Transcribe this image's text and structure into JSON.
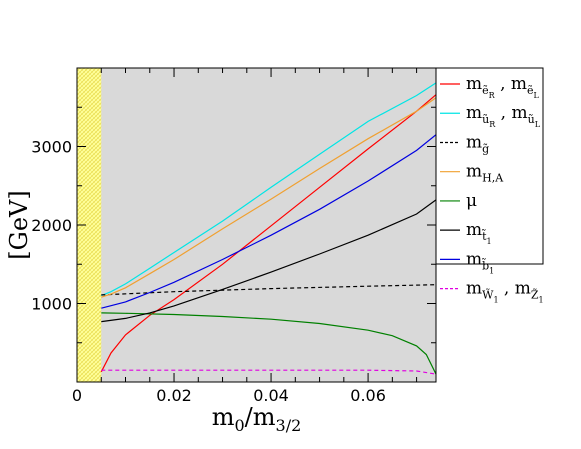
{
  "chart_data": {
    "type": "line",
    "xlabel": {
      "main": "m",
      "sub1": "0",
      "mid": "/m",
      "sub2": "3/2"
    },
    "ylabel": "[GeV]",
    "xlim": [
      0,
      0.074
    ],
    "ylim": [
      0,
      4000
    ],
    "x_ticks": [
      0,
      0.02,
      0.04,
      0.06
    ],
    "x_tick_labels": [
      "0",
      "0.02",
      "0.04",
      "0.06"
    ],
    "y_ticks": [
      1000,
      2000,
      3000
    ],
    "y_tick_labels": [
      "1000",
      "2000",
      "3000"
    ],
    "excluded_region": {
      "x_start": 0,
      "x_end": 0.005,
      "color": "#ffff88"
    },
    "plot_background": "#d9d9d9",
    "grid": false,
    "legend_position": "right",
    "series": [
      {
        "name": "m_{ẽR}, m_{ẽL}",
        "color": "#ff0000",
        "dash": "solid",
        "x": [
          0.005,
          0.007,
          0.01,
          0.015,
          0.02,
          0.03,
          0.04,
          0.05,
          0.06,
          0.07,
          0.074
        ],
        "y": [
          130,
          370,
          600,
          850,
          1050,
          1500,
          1990,
          2480,
          2970,
          3450,
          3660
        ]
      },
      {
        "name": "m_{ũR}, m_{ũL}",
        "color": "#00e5e5",
        "dash": "solid",
        "x": [
          0.005,
          0.007,
          0.01,
          0.015,
          0.02,
          0.03,
          0.04,
          0.05,
          0.06,
          0.07,
          0.074
        ],
        "y": [
          1100,
          1150,
          1250,
          1450,
          1650,
          2050,
          2480,
          2900,
          3320,
          3650,
          3810
        ]
      },
      {
        "name": "m_{g̃}",
        "color": "#000000",
        "dash": "dashed",
        "x": [
          0.005,
          0.02,
          0.04,
          0.06,
          0.074
        ],
        "y": [
          1110,
          1150,
          1190,
          1220,
          1240
        ]
      },
      {
        "name": "m_{H,A}",
        "color": "#f0a030",
        "dash": "solid",
        "x": [
          0.005,
          0.007,
          0.01,
          0.015,
          0.02,
          0.03,
          0.04,
          0.05,
          0.06,
          0.07,
          0.074
        ],
        "y": [
          1080,
          1120,
          1200,
          1380,
          1560,
          1950,
          2330,
          2720,
          3100,
          3450,
          3620
        ]
      },
      {
        "name": "μ",
        "color": "#008000",
        "dash": "solid",
        "x": [
          0.005,
          0.01,
          0.02,
          0.03,
          0.04,
          0.05,
          0.06,
          0.065,
          0.07,
          0.072,
          0.074
        ],
        "y": [
          880,
          875,
          860,
          835,
          800,
          745,
          660,
          590,
          460,
          350,
          100
        ]
      },
      {
        "name": "m_{t̃1}",
        "color": "#000000",
        "dash": "solid",
        "x": [
          0.005,
          0.01,
          0.015,
          0.02,
          0.03,
          0.04,
          0.05,
          0.06,
          0.07,
          0.074
        ],
        "y": [
          770,
          810,
          880,
          970,
          1180,
          1400,
          1630,
          1870,
          2140,
          2320
        ]
      },
      {
        "name": "m_{b̃1}",
        "color": "#0000e0",
        "dash": "solid",
        "x": [
          0.005,
          0.01,
          0.015,
          0.02,
          0.03,
          0.04,
          0.05,
          0.06,
          0.07,
          0.074
        ],
        "y": [
          940,
          1020,
          1140,
          1270,
          1560,
          1870,
          2200,
          2560,
          2950,
          3150
        ]
      },
      {
        "name": "m_{W̃1}, m_{Z̃1}",
        "color": "#e000e0",
        "dash": "dashed",
        "x": [
          0.005,
          0.02,
          0.04,
          0.06,
          0.07,
          0.074
        ],
        "y": [
          150,
          150,
          150,
          150,
          140,
          100
        ]
      }
    ],
    "legend": [
      {
        "line_color": "#ff0000",
        "dash": "solid",
        "parts": [
          [
            "m",
            ""
          ],
          [
            "ẽ",
            "sub"
          ],
          [
            "R",
            "subsub"
          ],
          [
            " , m",
            ""
          ],
          [
            "ẽ",
            "sub"
          ],
          [
            "L",
            "subsub"
          ]
        ]
      },
      {
        "line_color": "#00e5e5",
        "dash": "solid",
        "parts": [
          [
            "m",
            ""
          ],
          [
            "ũ",
            "sub"
          ],
          [
            "R",
            "subsub"
          ],
          [
            " , m",
            ""
          ],
          [
            "ũ",
            "sub"
          ],
          [
            "L",
            "subsub"
          ]
        ]
      },
      {
        "line_color": "#000000",
        "dash": "dashed",
        "parts": [
          [
            "m",
            ""
          ],
          [
            "g̃",
            "sub"
          ]
        ]
      },
      {
        "line_color": "#f0a030",
        "dash": "solid",
        "parts": [
          [
            "m",
            ""
          ],
          [
            "H,A",
            "sub"
          ]
        ]
      },
      {
        "line_color": "#008000",
        "dash": "solid",
        "parts": [
          [
            "μ",
            ""
          ]
        ]
      },
      {
        "line_color": "#000000",
        "dash": "solid",
        "parts": [
          [
            "m",
            ""
          ],
          [
            "t̃",
            "sub"
          ],
          [
            "1",
            "subsub"
          ]
        ]
      },
      {
        "line_color": "#0000e0",
        "dash": "solid",
        "parts": [
          [
            "m",
            ""
          ],
          [
            "b̃",
            "sub"
          ],
          [
            "1",
            "subsub"
          ]
        ]
      },
      {
        "line_color": "#e000e0",
        "dash": "dashed",
        "parts": [
          [
            "m",
            ""
          ],
          [
            "W̃",
            "sub"
          ],
          [
            "1",
            "subsub"
          ],
          [
            " , m",
            ""
          ],
          [
            "Z̃",
            "sub"
          ],
          [
            "1",
            "subsub"
          ]
        ]
      }
    ]
  }
}
